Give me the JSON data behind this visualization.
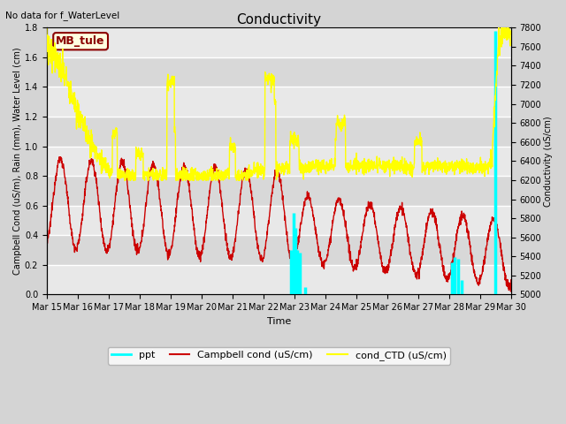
{
  "title": "Conductivity",
  "top_left_text": "No data for f_WaterLevel",
  "site_label": "MB_tule",
  "xlabel": "Time",
  "ylabel_left": "Campbell Cond (uS/m), Rain (mm), Water Level (cm)",
  "ylabel_right": "Conductivity (uS/cm)",
  "ylim_left": [
    0.0,
    1.8
  ],
  "ylim_right": [
    5000,
    7800
  ],
  "yticks_left": [
    0.0,
    0.2,
    0.4,
    0.6,
    0.8,
    1.0,
    1.2,
    1.4,
    1.6,
    1.8
  ],
  "yticks_right": [
    5000,
    5200,
    5400,
    5600,
    5800,
    6000,
    6200,
    6400,
    6600,
    6800,
    7000,
    7200,
    7400,
    7600,
    7800
  ],
  "xtick_labels": [
    "Mar 15",
    "Mar 16",
    "Mar 17",
    "Mar 18",
    "Mar 19",
    "Mar 20",
    "Mar 21",
    "Mar 22",
    "Mar 23",
    "Mar 24",
    "Mar 25",
    "Mar 26",
    "Mar 27",
    "Mar 28",
    "Mar 29",
    "Mar 30"
  ],
  "figsize": [
    6.4,
    4.8
  ],
  "dpi": 100,
  "bg_color": "#d4d4d4",
  "plot_bg_light": "#e8e8e8",
  "plot_bg_dark": "#d8d8d8",
  "grid_color": "#ffffff",
  "campbell_color": "#cc0000",
  "ctd_color": "#ffff00",
  "ppt_color": "#00ffff",
  "legend_solid_ppt": true,
  "legend_solid_campbell": true,
  "legend_solid_ctd": true
}
